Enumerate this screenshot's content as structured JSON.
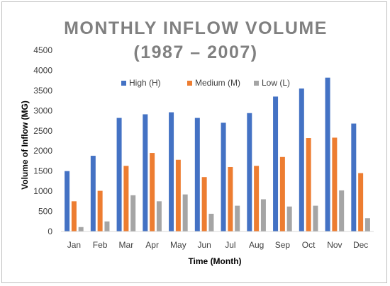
{
  "chart_data": {
    "type": "bar",
    "title_line1": "MONTHLY INFLOW VOLUME",
    "title_line2": "(1987 – 2007)",
    "xlabel": "Time (Month)",
    "ylabel": "Volume of Inflow (MG)",
    "ylim": [
      0,
      4500
    ],
    "yticks": [
      0,
      500,
      1000,
      1500,
      2000,
      2500,
      3000,
      3500,
      4000,
      4500
    ],
    "grid": false,
    "legend_position": "top",
    "categories": [
      "Jan",
      "Feb",
      "Mar",
      "Apr",
      "May",
      "Jun",
      "Jul",
      "Aug",
      "Sep",
      "Oct",
      "Nov",
      "Dec"
    ],
    "series": [
      {
        "name": "High (H)",
        "color": "#4472c4",
        "values": [
          1500,
          1880,
          2820,
          2910,
          2960,
          2820,
          2700,
          2940,
          3350,
          3550,
          3820,
          2680
        ]
      },
      {
        "name": "Medium (M)",
        "color": "#ed7d31",
        "values": [
          750,
          1010,
          1630,
          1950,
          1780,
          1350,
          1600,
          1630,
          1850,
          2320,
          2330,
          1450
        ]
      },
      {
        "name": "Low (L)",
        "color": "#a5a5a5",
        "values": [
          110,
          250,
          900,
          750,
          920,
          440,
          640,
          800,
          620,
          640,
          1020,
          330
        ]
      }
    ]
  }
}
